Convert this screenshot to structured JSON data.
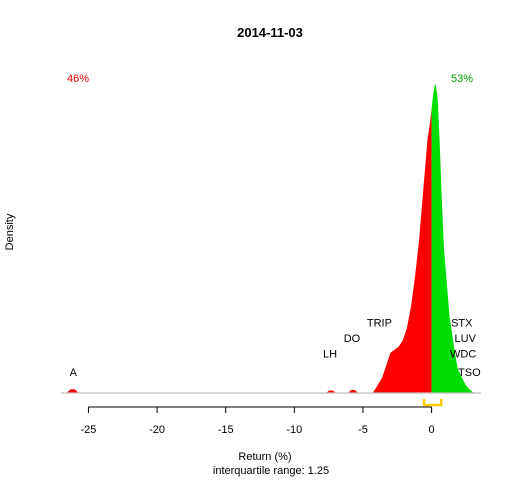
{
  "chart_data": {
    "type": "area",
    "title": "2014-11-03",
    "xlabel": "Return (%)",
    "ylabel": "Density",
    "subtitle": "interquartile range: 1.25",
    "xlim": [
      -27,
      3.6
    ],
    "ylim": [
      0,
      1
    ],
    "x_ticks": [
      -25,
      -20,
      -15,
      -10,
      -5,
      0
    ],
    "x_tick_labels": [
      "-25",
      "-20",
      "-15",
      "-10",
      "-5",
      "0"
    ],
    "split_at": 0,
    "negative_share_label": "46%",
    "positive_share_label": "53%",
    "colors": {
      "negative": "#ff0000",
      "positive": "#00dd00",
      "iqr_marker": "#ffcc00",
      "baseline": "#bfbfbf",
      "axis": "#000000"
    },
    "interquartile_range": [
      -0.55,
      0.7
    ],
    "density": [
      [
        -26.6,
        0.0
      ],
      [
        -26.3,
        0.012
      ],
      [
        -26.0,
        0.012
      ],
      [
        -25.7,
        0.0
      ],
      [
        -7.7,
        0.0
      ],
      [
        -7.45,
        0.008
      ],
      [
        -7.2,
        0.008
      ],
      [
        -6.95,
        0.0
      ],
      [
        -6.1,
        0.0
      ],
      [
        -5.85,
        0.01
      ],
      [
        -5.6,
        0.01
      ],
      [
        -5.35,
        0.0
      ],
      [
        -4.3,
        0.0
      ],
      [
        -4.0,
        0.02
      ],
      [
        -3.6,
        0.05
      ],
      [
        -3.3,
        0.09
      ],
      [
        -3.0,
        0.13
      ],
      [
        -2.7,
        0.14
      ],
      [
        -2.4,
        0.15
      ],
      [
        -2.1,
        0.17
      ],
      [
        -1.8,
        0.21
      ],
      [
        -1.5,
        0.28
      ],
      [
        -1.2,
        0.38
      ],
      [
        -0.9,
        0.5
      ],
      [
        -0.6,
        0.66
      ],
      [
        -0.3,
        0.82
      ],
      [
        -0.1,
        0.88
      ],
      [
        0.0,
        0.92
      ],
      [
        0.1,
        0.96
      ],
      [
        0.2,
        0.99
      ],
      [
        0.3,
        1.0
      ],
      [
        0.45,
        0.95
      ],
      [
        0.6,
        0.8
      ],
      [
        0.75,
        0.62
      ],
      [
        0.9,
        0.47
      ],
      [
        1.1,
        0.36
      ],
      [
        1.3,
        0.25
      ],
      [
        1.5,
        0.19
      ],
      [
        1.7,
        0.13
      ],
      [
        1.9,
        0.08
      ],
      [
        2.2,
        0.05
      ],
      [
        2.5,
        0.025
      ],
      [
        2.8,
        0.01
      ],
      [
        3.1,
        0.0
      ]
    ],
    "annotations": [
      {
        "label": "A",
        "x": -26.1,
        "y": 0.055
      },
      {
        "label": "LH",
        "x": -7.4,
        "y": 0.115
      },
      {
        "label": "DO",
        "x": -5.8,
        "y": 0.165
      },
      {
        "label": "TRIP",
        "x": -3.8,
        "y": 0.215
      },
      {
        "label": "STX",
        "x": 2.2,
        "y": 0.215
      },
      {
        "label": "LUV",
        "x": 2.45,
        "y": 0.165
      },
      {
        "label": "WDC",
        "x": 2.3,
        "y": 0.115
      },
      {
        "label": "TSO",
        "x": 2.75,
        "y": 0.055
      }
    ]
  }
}
